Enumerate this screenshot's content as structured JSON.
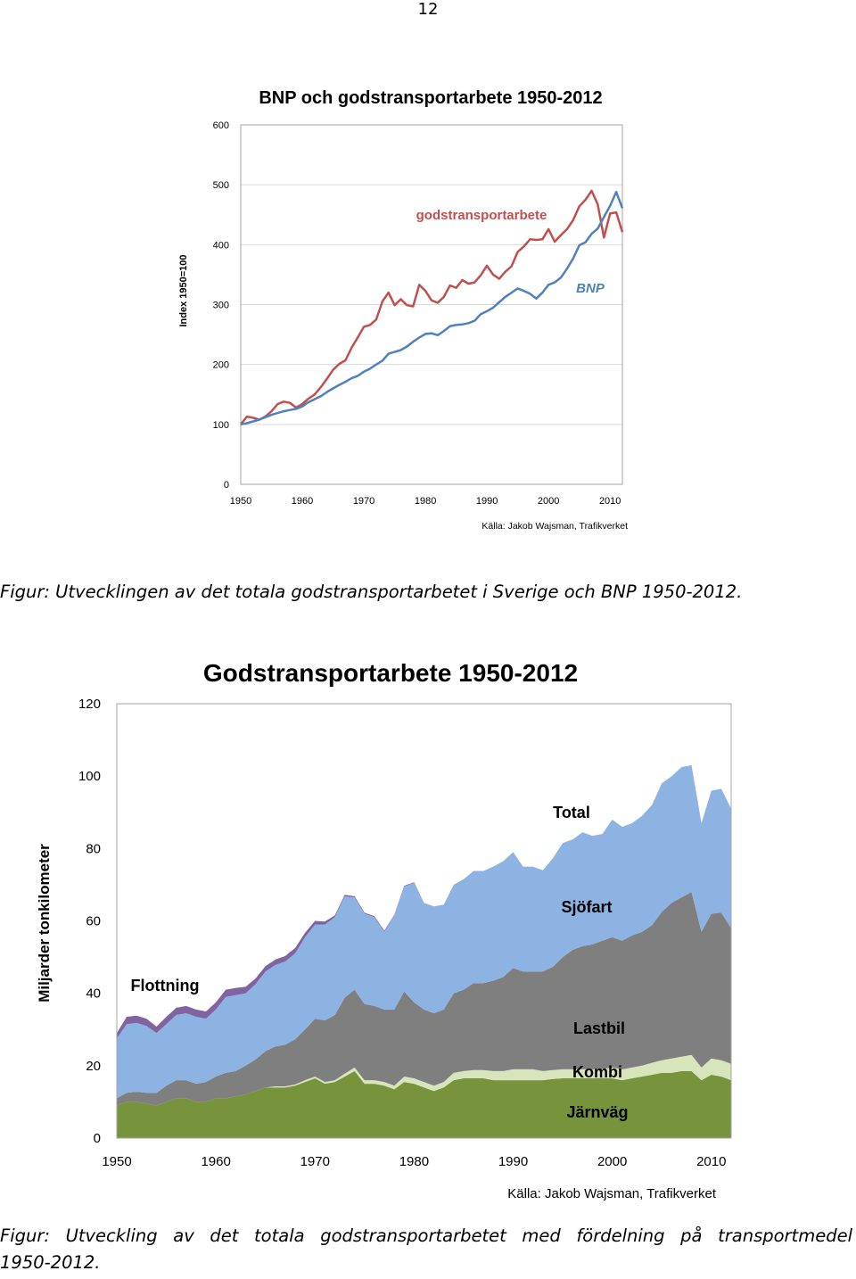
{
  "page_number": "12",
  "captions": {
    "figure1": "Figur: Utvecklingen av det totala godstransportarbetet i Sverige och BNP 1950-2012.",
    "figure2_line1": "Figur: Utveckling av det totala godstransportarbetet med fördelning på transportmedel",
    "figure2_line2": "1950-2012."
  },
  "chart_data": [
    {
      "type": "line",
      "title": "BNP och godstransportarbete 1950-2012",
      "ylabel": "Index 1950=100",
      "xlabel": "",
      "source": "Källa: Jakob Wajsman, Trafikverket",
      "xlim": [
        1950,
        2012
      ],
      "ylim": [
        0,
        600
      ],
      "x_ticks": [
        1950,
        1960,
        1970,
        1980,
        1990,
        2000,
        2010
      ],
      "y_ticks": [
        0,
        100,
        200,
        300,
        400,
        500,
        600
      ],
      "grid": true,
      "x": [
        1950,
        1951,
        1952,
        1953,
        1954,
        1955,
        1956,
        1957,
        1958,
        1959,
        1960,
        1961,
        1962,
        1963,
        1964,
        1965,
        1966,
        1967,
        1968,
        1969,
        1970,
        1971,
        1972,
        1973,
        1974,
        1975,
        1976,
        1977,
        1978,
        1979,
        1980,
        1981,
        1982,
        1983,
        1984,
        1985,
        1986,
        1987,
        1988,
        1989,
        1990,
        1991,
        1992,
        1993,
        1994,
        1995,
        1996,
        1997,
        1998,
        1999,
        2000,
        2001,
        2002,
        2003,
        2004,
        2005,
        2006,
        2007,
        2008,
        2009,
        2010,
        2011,
        2012
      ],
      "series": [
        {
          "name": "godstransportarbete",
          "color": "#c0504d",
          "values": [
            100,
            113,
            111,
            108,
            113,
            122,
            134,
            138,
            136,
            128,
            134,
            143,
            150,
            162,
            176,
            191,
            201,
            207,
            228,
            245,
            263,
            266,
            275,
            305,
            320,
            299,
            309,
            299,
            297,
            333,
            323,
            307,
            303,
            313,
            332,
            328,
            341,
            335,
            337,
            349,
            365,
            350,
            343,
            355,
            364,
            388,
            397,
            409,
            408,
            409,
            426,
            405,
            416,
            426,
            441,
            464,
            475,
            490,
            467,
            412,
            452,
            454,
            421
          ]
        },
        {
          "name": "BNP",
          "color": "#4f81bd",
          "values": [
            100,
            102,
            105,
            108,
            112,
            116,
            119,
            122,
            124,
            126,
            130,
            137,
            142,
            147,
            154,
            160,
            166,
            171,
            177,
            181,
            188,
            193,
            200,
            206,
            218,
            221,
            224,
            230,
            238,
            245,
            251,
            252,
            249,
            256,
            264,
            266,
            267,
            269,
            273,
            284,
            289,
            295,
            304,
            313,
            320,
            327,
            323,
            318,
            310,
            320,
            333,
            337,
            345,
            360,
            377,
            399,
            404,
            418,
            427,
            446,
            465,
            488,
            461
          ]
        }
      ],
      "series_labels": [
        "godstransportarbete",
        "BNP"
      ]
    },
    {
      "type": "area",
      "stacked": true,
      "title": "Godstransportarbete 1950-2012",
      "ylabel": "Miljarder tonkilometer",
      "xlabel": "",
      "source": "Källa: Jakob Wajsman, Trafikverket",
      "xlim": [
        1950,
        2012
      ],
      "ylim": [
        0,
        120
      ],
      "x_ticks": [
        1950,
        1960,
        1970,
        1980,
        1990,
        2000,
        2010
      ],
      "y_ticks": [
        0,
        20,
        40,
        60,
        80,
        100,
        120
      ],
      "grid": false,
      "x": [
        1950,
        1951,
        1952,
        1953,
        1954,
        1955,
        1956,
        1957,
        1958,
        1959,
        1960,
        1961,
        1962,
        1963,
        1964,
        1965,
        1966,
        1967,
        1968,
        1969,
        1970,
        1971,
        1972,
        1973,
        1974,
        1975,
        1976,
        1977,
        1978,
        1979,
        1980,
        1981,
        1982,
        1983,
        1984,
        1985,
        1986,
        1987,
        1988,
        1989,
        1990,
        1991,
        1992,
        1993,
        1994,
        1995,
        1996,
        1997,
        1998,
        1999,
        2000,
        2001,
        2002,
        2003,
        2004,
        2005,
        2006,
        2007,
        2008,
        2009,
        2010,
        2011,
        2012
      ],
      "series": [
        {
          "name": "Järnväg",
          "color": "#77933c",
          "values": [
            9,
            10,
            10,
            9.5,
            9,
            10,
            11,
            11,
            10,
            10,
            11,
            11,
            11.5,
            12,
            13,
            14,
            14,
            14,
            14.5,
            15.5,
            16.5,
            15,
            15.5,
            17,
            18.5,
            15,
            15,
            14.5,
            13.5,
            15.5,
            15,
            14,
            13,
            14,
            16,
            16.5,
            16.5,
            16.5,
            16,
            16,
            16,
            16,
            16,
            16,
            16.3,
            16.5,
            16.5,
            16.5,
            16.5,
            16.6,
            16.5,
            16,
            16.5,
            17,
            17.5,
            18,
            18,
            18.5,
            18.5,
            16,
            17.5,
            17,
            16
          ]
        },
        {
          "name": "Kombi",
          "color": "#d7e4bc",
          "values": [
            0,
            0,
            0,
            0,
            0,
            0,
            0,
            0,
            0,
            0,
            0,
            0,
            0,
            0,
            0,
            0,
            0.3,
            0.3,
            0.3,
            0.5,
            0.5,
            0.5,
            0.5,
            0.8,
            1,
            1,
            1,
            1,
            1,
            1.5,
            1.5,
            1.5,
            1.5,
            1.5,
            2,
            2,
            2.3,
            2.3,
            2.5,
            2.5,
            3,
            3,
            3,
            2.5,
            2.5,
            2.5,
            2.5,
            2.5,
            2.5,
            2.5,
            3,
            3,
            3,
            3,
            3.3,
            3.5,
            4,
            4,
            4.5,
            3.5,
            4.5,
            4.5,
            4.5
          ]
        },
        {
          "name": "Lastbil",
          "color": "#7f7f7f",
          "values": [
            2,
            2.5,
            2.8,
            3,
            3.5,
            4.5,
            5,
            5,
            5,
            5.5,
            6,
            7,
            7,
            8,
            8.7,
            10,
            11,
            11.5,
            12.5,
            14,
            16,
            17,
            18,
            21,
            21.5,
            21,
            20.5,
            20,
            21,
            23.5,
            21,
            20,
            20,
            20,
            22,
            22.5,
            24,
            24,
            25,
            26,
            28,
            27,
            27,
            27.5,
            28.5,
            31,
            33,
            34,
            34.5,
            35.4,
            36,
            35.5,
            36.5,
            37,
            38,
            41,
            43,
            44,
            45,
            37.5,
            40,
            40.8,
            37.5
          ]
        },
        {
          "name": "Sjöfart",
          "color": "#8db3e2",
          "values": [
            16.5,
            19,
            19,
            18.5,
            16.5,
            17,
            18,
            18.5,
            18.5,
            17.5,
            18.5,
            21,
            21,
            20,
            20.8,
            22,
            22.5,
            23,
            23.7,
            25.5,
            26,
            26.5,
            27,
            28,
            25.5,
            25,
            24.5,
            21.5,
            26,
            29,
            33,
            29.5,
            29.5,
            29,
            30,
            30.5,
            31,
            31,
            31.5,
            32,
            32,
            29,
            29,
            28,
            30,
            31.5,
            30.5,
            31.5,
            30,
            29.5,
            32.5,
            31.5,
            31,
            32,
            33.2,
            35.5,
            35,
            36,
            35,
            30,
            34,
            34.2,
            33
          ]
        },
        {
          "name": "Flottning",
          "color": "#8064a2",
          "values": [
            1.5,
            2,
            2,
            2,
            1.8,
            2,
            2,
            2,
            2,
            2,
            2,
            2,
            2,
            1.8,
            1.6,
            1.5,
            1.5,
            1.5,
            1.5,
            1.2,
            1,
            0.8,
            0.5,
            0.4,
            0.3,
            0.3,
            0.3,
            0.3,
            0.2,
            0.2,
            0.2,
            0,
            0,
            0,
            0,
            0,
            0,
            0,
            0,
            0,
            0,
            0,
            0,
            0,
            0,
            0,
            0,
            0,
            0,
            0,
            0,
            0,
            0,
            0,
            0,
            0,
            0,
            0,
            0,
            0,
            0,
            0,
            0
          ]
        }
      ],
      "total_label": "Total",
      "series_labels": [
        "Total",
        "Sjöfart",
        "Lastbil",
        "Kombi",
        "Järnväg",
        "Flottning"
      ]
    }
  ]
}
